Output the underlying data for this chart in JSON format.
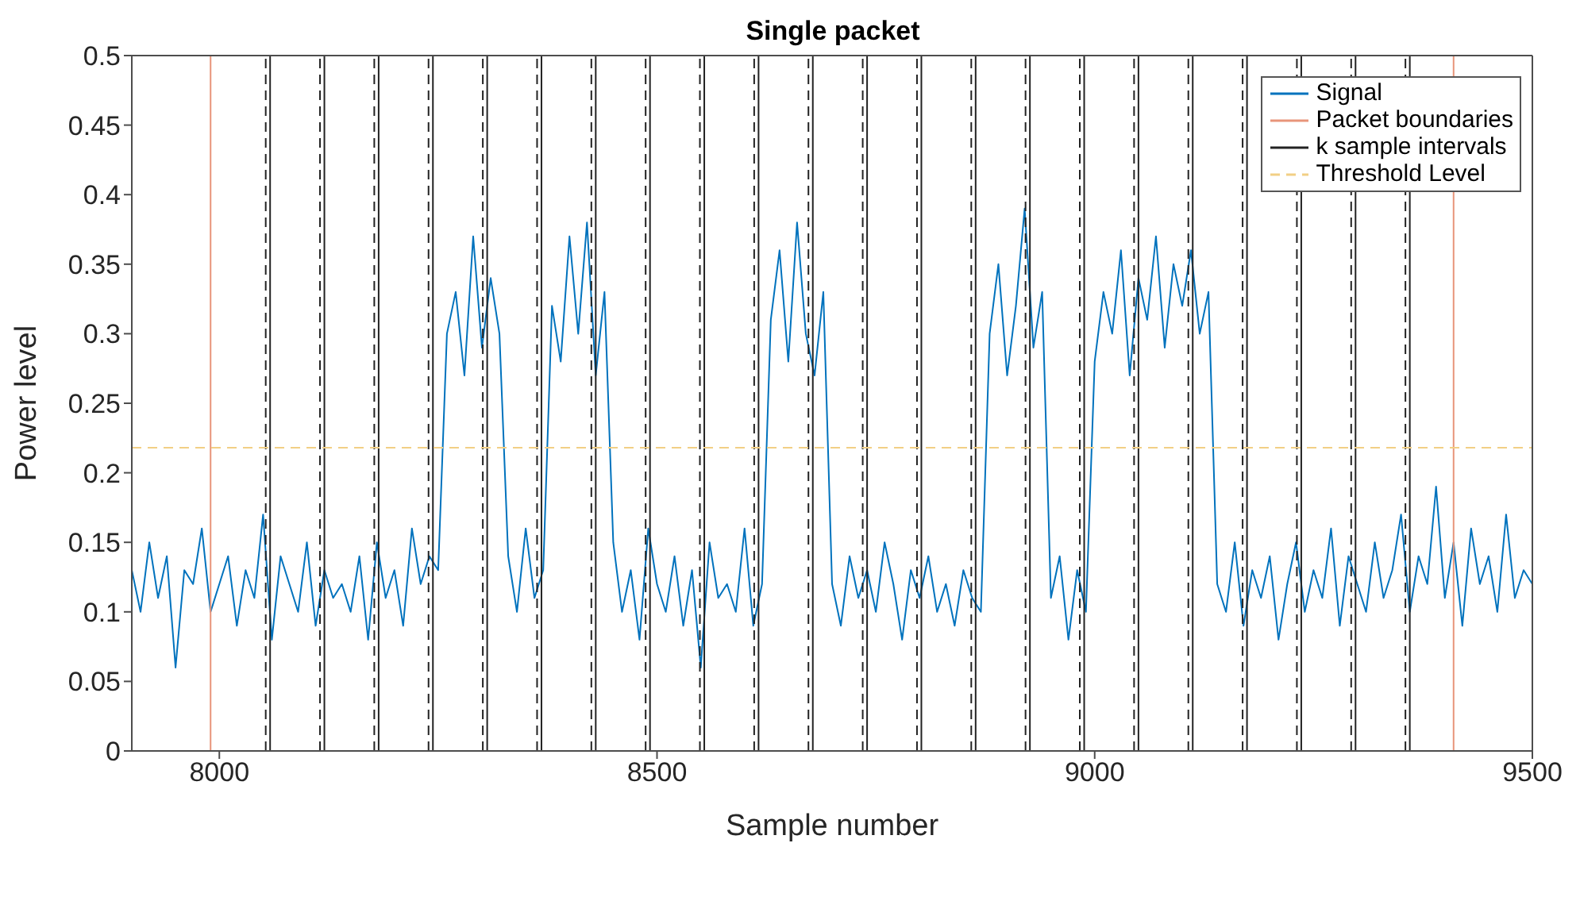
{
  "chart_data": {
    "type": "line",
    "title": "Single packet",
    "xlabel": "Sample number",
    "ylabel": "Power level",
    "xlim": [
      7900,
      9500
    ],
    "xticks": [
      8000,
      8500,
      9000,
      9500
    ],
    "ylim": [
      0,
      0.5
    ],
    "yticks": [
      0,
      0.05,
      0.1,
      0.15,
      0.2,
      0.25,
      0.3,
      0.35,
      0.4,
      0.45,
      0.5
    ],
    "grid": false,
    "legend": "top right",
    "x": [
      7900,
      7910,
      7920,
      7930,
      7940,
      7950,
      7960,
      7970,
      7980,
      7990,
      8000,
      8010,
      8020,
      8030,
      8040,
      8050,
      8060,
      8070,
      8080,
      8090,
      8100,
      8110,
      8120,
      8130,
      8140,
      8150,
      8160,
      8170,
      8180,
      8190,
      8200,
      8210,
      8220,
      8230,
      8240,
      8250,
      8260,
      8270,
      8280,
      8290,
      8300,
      8310,
      8320,
      8330,
      8340,
      8350,
      8360,
      8370,
      8380,
      8390,
      8400,
      8410,
      8420,
      8430,
      8440,
      8450,
      8460,
      8470,
      8480,
      8490,
      8500,
      8510,
      8520,
      8530,
      8540,
      8550,
      8560,
      8570,
      8580,
      8590,
      8600,
      8610,
      8620,
      8630,
      8640,
      8650,
      8660,
      8670,
      8680,
      8690,
      8700,
      8710,
      8720,
      8730,
      8740,
      8750,
      8760,
      8770,
      8780,
      8790,
      8800,
      8810,
      8820,
      8830,
      8840,
      8850,
      8860,
      8870,
      8880,
      8890,
      8900,
      8910,
      8920,
      8930,
      8940,
      8950,
      8960,
      8970,
      8980,
      8990,
      9000,
      9010,
      9020,
      9030,
      9040,
      9050,
      9060,
      9070,
      9080,
      9090,
      9100,
      9110,
      9120,
      9130,
      9140,
      9150,
      9160,
      9170,
      9180,
      9190,
      9200,
      9210,
      9220,
      9230,
      9240,
      9250,
      9260,
      9270,
      9280,
      9290,
      9300,
      9310,
      9320,
      9330,
      9340,
      9350,
      9360,
      9370,
      9380,
      9390,
      9400,
      9410,
      9420,
      9430,
      9440,
      9450,
      9460,
      9470,
      9480,
      9490,
      9500
    ],
    "series": [
      {
        "name": "Signal",
        "type": "line",
        "color": "#0072bd",
        "line_style": "solid",
        "values": [
          0.13,
          0.1,
          0.15,
          0.11,
          0.14,
          0.06,
          0.13,
          0.12,
          0.16,
          0.1,
          0.12,
          0.14,
          0.09,
          0.13,
          0.11,
          0.17,
          0.08,
          0.14,
          0.12,
          0.1,
          0.15,
          0.09,
          0.13,
          0.11,
          0.12,
          0.1,
          0.14,
          0.08,
          0.15,
          0.11,
          0.13,
          0.09,
          0.16,
          0.12,
          0.14,
          0.13,
          0.3,
          0.33,
          0.27,
          0.37,
          0.29,
          0.34,
          0.3,
          0.14,
          0.1,
          0.16,
          0.11,
          0.13,
          0.32,
          0.28,
          0.37,
          0.3,
          0.38,
          0.27,
          0.33,
          0.15,
          0.1,
          0.13,
          0.08,
          0.16,
          0.12,
          0.1,
          0.14,
          0.09,
          0.13,
          0.06,
          0.15,
          0.11,
          0.12,
          0.1,
          0.16,
          0.09,
          0.12,
          0.31,
          0.36,
          0.28,
          0.38,
          0.3,
          0.27,
          0.33,
          0.12,
          0.09,
          0.14,
          0.11,
          0.13,
          0.1,
          0.15,
          0.12,
          0.08,
          0.13,
          0.11,
          0.14,
          0.1,
          0.12,
          0.09,
          0.13,
          0.11,
          0.1,
          0.3,
          0.35,
          0.27,
          0.32,
          0.39,
          0.29,
          0.33,
          0.11,
          0.14,
          0.08,
          0.13,
          0.1,
          0.28,
          0.33,
          0.3,
          0.36,
          0.27,
          0.34,
          0.31,
          0.37,
          0.29,
          0.35,
          0.32,
          0.36,
          0.3,
          0.33,
          0.12,
          0.1,
          0.15,
          0.09,
          0.13,
          0.11,
          0.14,
          0.08,
          0.12,
          0.15,
          0.1,
          0.13,
          0.11,
          0.16,
          0.09,
          0.14,
          0.12,
          0.1,
          0.15,
          0.11,
          0.13,
          0.17,
          0.1,
          0.14,
          0.12,
          0.19,
          0.11,
          0.15,
          0.09,
          0.16,
          0.12,
          0.14,
          0.1,
          0.17,
          0.11,
          0.13,
          0.12
        ]
      },
      {
        "name": "Packet boundaries",
        "type": "line",
        "color": "#e8957a",
        "line_style": "solid",
        "x": [
          7990,
          7990
        ],
        "values": [
          0,
          0.5
        ]
      },
      {
        "type": "line",
        "color": "#e8957a",
        "line_style": "solid",
        "x": [
          9410,
          9410
        ],
        "values": [
          0,
          0.5
        ]
      },
      {
        "name": "k sample intervals",
        "type": "line",
        "color": "#222222",
        "line_style": "solid",
        "x": [
          8058,
          8058
        ],
        "values": [
          0,
          0.5
        ]
      },
      {
        "type": "line",
        "color": "#222222",
        "line_style": "solid",
        "x": [
          8120,
          8120
        ],
        "values": [
          0,
          0.5
        ]
      },
      {
        "type": "line",
        "color": "#222222",
        "line_style": "solid",
        "x": [
          8182,
          8182
        ],
        "values": [
          0,
          0.5
        ]
      },
      {
        "type": "line",
        "color": "#222222",
        "line_style": "solid",
        "x": [
          8244,
          8244
        ],
        "values": [
          0,
          0.5
        ]
      },
      {
        "type": "line",
        "color": "#222222",
        "line_style": "solid",
        "x": [
          8306,
          8306
        ],
        "values": [
          0,
          0.5
        ]
      },
      {
        "type": "line",
        "color": "#222222",
        "line_style": "solid",
        "x": [
          8368,
          8368
        ],
        "values": [
          0,
          0.5
        ]
      },
      {
        "type": "line",
        "color": "#222222",
        "line_style": "solid",
        "x": [
          8430,
          8430
        ],
        "values": [
          0,
          0.5
        ]
      },
      {
        "type": "line",
        "color": "#222222",
        "line_style": "solid",
        "x": [
          8492,
          8492
        ],
        "values": [
          0,
          0.5
        ]
      },
      {
        "type": "line",
        "color": "#222222",
        "line_style": "solid",
        "x": [
          8554,
          8554
        ],
        "values": [
          0,
          0.5
        ]
      },
      {
        "type": "line",
        "color": "#222222",
        "line_style": "solid",
        "x": [
          8616,
          8616
        ],
        "values": [
          0,
          0.5
        ]
      },
      {
        "type": "line",
        "color": "#222222",
        "line_style": "solid",
        "x": [
          8678,
          8678
        ],
        "values": [
          0,
          0.5
        ]
      },
      {
        "type": "line",
        "color": "#222222",
        "line_style": "solid",
        "x": [
          8740,
          8740
        ],
        "values": [
          0,
          0.5
        ]
      },
      {
        "type": "line",
        "color": "#222222",
        "line_style": "solid",
        "x": [
          8802,
          8802
        ],
        "values": [
          0,
          0.5
        ]
      },
      {
        "type": "line",
        "color": "#222222",
        "line_style": "solid",
        "x": [
          8864,
          8864
        ],
        "values": [
          0,
          0.5
        ]
      },
      {
        "type": "line",
        "color": "#222222",
        "line_style": "solid",
        "x": [
          8926,
          8926
        ],
        "values": [
          0,
          0.5
        ]
      },
      {
        "type": "line",
        "color": "#222222",
        "line_style": "solid",
        "x": [
          8988,
          8988
        ],
        "values": [
          0,
          0.5
        ]
      },
      {
        "type": "line",
        "color": "#222222",
        "line_style": "solid",
        "x": [
          9050,
          9050
        ],
        "values": [
          0,
          0.5
        ]
      },
      {
        "type": "line",
        "color": "#222222",
        "line_style": "solid",
        "x": [
          9112,
          9112
        ],
        "values": [
          0,
          0.5
        ]
      },
      {
        "type": "line",
        "color": "#222222",
        "line_style": "solid",
        "x": [
          9174,
          9174
        ],
        "values": [
          0,
          0.5
        ]
      },
      {
        "type": "line",
        "color": "#222222",
        "line_style": "solid",
        "x": [
          9236,
          9236
        ],
        "values": [
          0,
          0.5
        ]
      },
      {
        "type": "line",
        "color": "#222222",
        "line_style": "solid",
        "x": [
          9298,
          9298
        ],
        "values": [
          0,
          0.5
        ]
      },
      {
        "type": "line",
        "color": "#222222",
        "line_style": "solid",
        "x": [
          9360,
          9360
        ],
        "values": [
          0,
          0.5
        ]
      },
      {
        "type": "line",
        "color": "#222222",
        "line_style": "dashed",
        "x": [
          8053,
          8053
        ],
        "values": [
          0,
          0.5
        ]
      },
      {
        "type": "line",
        "color": "#222222",
        "line_style": "dashed",
        "x": [
          8115,
          8115
        ],
        "values": [
          0,
          0.5
        ]
      },
      {
        "type": "line",
        "color": "#222222",
        "line_style": "dashed",
        "x": [
          8177,
          8177
        ],
        "values": [
          0,
          0.5
        ]
      },
      {
        "type": "line",
        "color": "#222222",
        "line_style": "dashed",
        "x": [
          8239,
          8239
        ],
        "values": [
          0,
          0.5
        ]
      },
      {
        "type": "line",
        "color": "#222222",
        "line_style": "dashed",
        "x": [
          8301,
          8301
        ],
        "values": [
          0,
          0.5
        ]
      },
      {
        "type": "line",
        "color": "#222222",
        "line_style": "dashed",
        "x": [
          8363,
          8363
        ],
        "values": [
          0,
          0.5
        ]
      },
      {
        "type": "line",
        "color": "#222222",
        "line_style": "dashed",
        "x": [
          8425,
          8425
        ],
        "values": [
          0,
          0.5
        ]
      },
      {
        "type": "line",
        "color": "#222222",
        "line_style": "dashed",
        "x": [
          8487,
          8487
        ],
        "values": [
          0,
          0.5
        ]
      },
      {
        "type": "line",
        "color": "#222222",
        "line_style": "dashed",
        "x": [
          8549,
          8549
        ],
        "values": [
          0,
          0.5
        ]
      },
      {
        "type": "line",
        "color": "#222222",
        "line_style": "dashed",
        "x": [
          8611,
          8611
        ],
        "values": [
          0,
          0.5
        ]
      },
      {
        "type": "line",
        "color": "#222222",
        "line_style": "dashed",
        "x": [
          8673,
          8673
        ],
        "values": [
          0,
          0.5
        ]
      },
      {
        "type": "line",
        "color": "#222222",
        "line_style": "dashed",
        "x": [
          8735,
          8735
        ],
        "values": [
          0,
          0.5
        ]
      },
      {
        "type": "line",
        "color": "#222222",
        "line_style": "dashed",
        "x": [
          8797,
          8797
        ],
        "values": [
          0,
          0.5
        ]
      },
      {
        "type": "line",
        "color": "#222222",
        "line_style": "dashed",
        "x": [
          8859,
          8859
        ],
        "values": [
          0,
          0.5
        ]
      },
      {
        "type": "line",
        "color": "#222222",
        "line_style": "dashed",
        "x": [
          8921,
          8921
        ],
        "values": [
          0,
          0.5
        ]
      },
      {
        "type": "line",
        "color": "#222222",
        "line_style": "dashed",
        "x": [
          8983,
          8983
        ],
        "values": [
          0,
          0.5
        ]
      },
      {
        "type": "line",
        "color": "#222222",
        "line_style": "dashed",
        "x": [
          9045,
          9045
        ],
        "values": [
          0,
          0.5
        ]
      },
      {
        "type": "line",
        "color": "#222222",
        "line_style": "dashed",
        "x": [
          9107,
          9107
        ],
        "values": [
          0,
          0.5
        ]
      },
      {
        "type": "line",
        "color": "#222222",
        "line_style": "dashed",
        "x": [
          9169,
          9169
        ],
        "values": [
          0,
          0.5
        ]
      },
      {
        "type": "line",
        "color": "#222222",
        "line_style": "dashed",
        "x": [
          9231,
          9231
        ],
        "values": [
          0,
          0.5
        ]
      },
      {
        "type": "line",
        "color": "#222222",
        "line_style": "dashed",
        "x": [
          9293,
          9293
        ],
        "values": [
          0,
          0.5
        ]
      },
      {
        "type": "line",
        "color": "#222222",
        "line_style": "dashed",
        "x": [
          9355,
          9355
        ],
        "values": [
          0,
          0.5
        ]
      },
      {
        "name": "Threshold Level",
        "type": "line",
        "color": "#f2cf85",
        "line_style": "dashed",
        "x": [
          7900,
          9500
        ],
        "values": [
          0.218,
          0.218
        ]
      }
    ]
  }
}
